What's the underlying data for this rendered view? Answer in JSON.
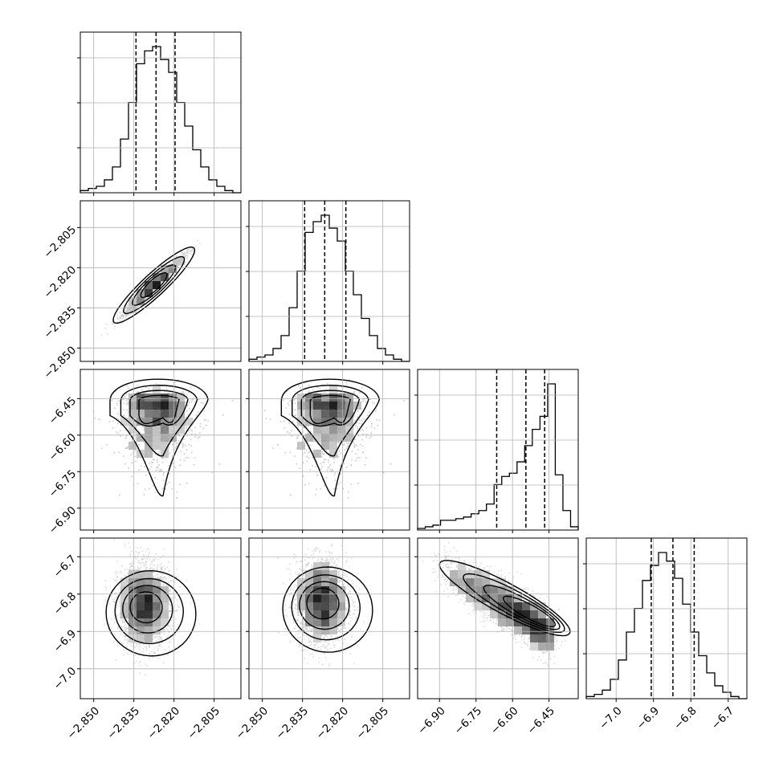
{
  "chart_data": {
    "type": "corner",
    "params": [
      {
        "range": [
          -2.855,
          -2.795
        ],
        "ticks": [
          -2.85,
          -2.835,
          -2.82,
          -2.805
        ],
        "tick_labels": [
          "−2.850",
          "−2.835",
          "−2.820",
          "−2.805"
        ]
      },
      {
        "range": [
          -2.855,
          -2.795
        ],
        "ticks": [
          -2.85,
          -2.835,
          -2.82,
          -2.805
        ],
        "tick_labels": [
          "−2.850",
          "−2.835",
          "−2.820",
          "−2.805"
        ]
      },
      {
        "range": [
          -6.99,
          -6.33
        ],
        "ticks": [
          -6.9,
          -6.75,
          -6.6,
          -6.45
        ],
        "tick_labels": [
          "−6.90",
          "−6.75",
          "−6.60",
          "−6.45"
        ]
      },
      {
        "range": [
          -7.08,
          -6.65
        ],
        "ticks": [
          -7.0,
          -6.9,
          -6.8,
          -6.7
        ],
        "tick_labels": [
          "−7.0",
          "−6.9",
          "−6.8",
          "−6.7"
        ]
      }
    ],
    "histograms": [
      {
        "edges_range": [
          -2.855,
          -2.795
        ],
        "counts": [
          1,
          2,
          3,
          6,
          12,
          25,
          42,
          60,
          66,
          68,
          62,
          56,
          42,
          31,
          20,
          12,
          6,
          3,
          1,
          0
        ],
        "quantiles": [
          -2.8342,
          -2.8267,
          -2.8196
        ]
      },
      {
        "edges_range": [
          -2.855,
          -2.795
        ],
        "counts": [
          1,
          2,
          3,
          6,
          12,
          25,
          42,
          60,
          65,
          68,
          62,
          56,
          42,
          31,
          20,
          12,
          6,
          3,
          1,
          0
        ],
        "quantiles": [
          -2.8342,
          -2.8267,
          -2.8188
        ]
      },
      {
        "edges_range": [
          -6.99,
          -6.33
        ],
        "counts": [
          1,
          2,
          3,
          6,
          6,
          7,
          8,
          10,
          12,
          16,
          28,
          33,
          35,
          42,
          52,
          62,
          70,
          90,
          34,
          12,
          2
        ],
        "quantiles": [
          -6.665,
          -6.545,
          -6.468
        ]
      },
      {
        "edges_range": [
          -7.08,
          -6.65
        ],
        "counts": [
          1,
          2,
          4,
          9,
          18,
          31,
          42,
          55,
          62,
          68,
          64,
          56,
          44,
          31,
          20,
          12,
          6,
          3,
          1,
          0
        ],
        "quantiles": [
          -6.906,
          -6.848,
          -6.791
        ]
      }
    ],
    "pairs": [
      {
        "row": 1,
        "col": 0,
        "shape": "correlated",
        "cov": [
          [
            2.8e-05,
            2.8e-05
          ],
          [
            2.8e-05,
            2.9e-05
          ]
        ],
        "peak": [
          -2.8275,
          -2.8265
        ]
      },
      {
        "row": 2,
        "col": 0,
        "shape": "tailed",
        "peak": [
          -2.8265,
          -6.48
        ]
      },
      {
        "row": 2,
        "col": 1,
        "shape": "tailed",
        "peak": [
          -2.8255,
          -6.48
        ]
      },
      {
        "row": 3,
        "col": 0,
        "shape": "blob",
        "peak": [
          -2.831,
          -6.83
        ]
      },
      {
        "row": 3,
        "col": 1,
        "shape": "blob",
        "peak": [
          -2.828,
          -6.82
        ]
      },
      {
        "row": 3,
        "col": 2,
        "shape": "banana",
        "peak": [
          -6.465,
          -6.87
        ]
      }
    ],
    "contour_levels_sigma": [
      0.5,
      1.0,
      1.5,
      2.0
    ],
    "grid": true,
    "colors": {
      "line": "#000000",
      "grid": "#b0b0b0",
      "scatter": "#bdbdbd",
      "density_dark": "#000000"
    }
  }
}
